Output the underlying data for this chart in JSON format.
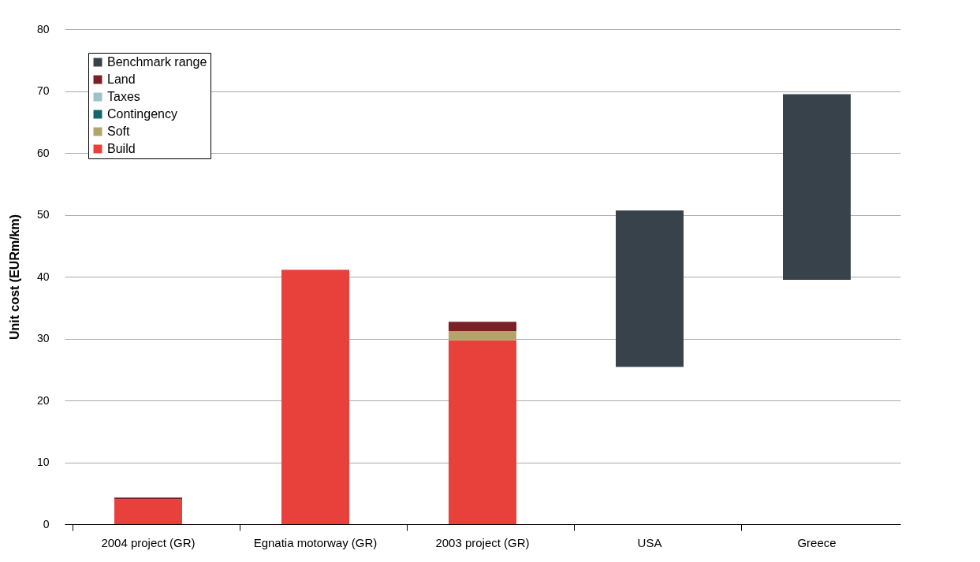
{
  "chart_data": {
    "type": "bar",
    "stacked": true,
    "ylabel": "Unit cost (EURm/km)",
    "categories": [
      "2004 project (GR)",
      "Egnatia motorway (GR)",
      "2003 project (GR)",
      "USA",
      "Greece"
    ],
    "series": [
      {
        "name": "Build",
        "color": "#e8403a",
        "values": [
          4.0,
          41.1,
          29.7,
          null,
          null
        ]
      },
      {
        "name": "Soft",
        "color": "#b2a56c",
        "values": [
          null,
          null,
          1.5,
          null,
          null
        ]
      },
      {
        "name": "Contingency",
        "color": "#17646e",
        "values": [
          null,
          null,
          null,
          null,
          null
        ]
      },
      {
        "name": "Taxes",
        "color": "#9cc3c6",
        "values": [
          null,
          null,
          null,
          null,
          null
        ]
      },
      {
        "name": "Land",
        "color": "#7a2026",
        "values": [
          0.3,
          null,
          1.5,
          null,
          null
        ]
      },
      {
        "name": "Benchmark range",
        "color": "#37424b",
        "values": [
          null,
          null,
          null,
          25.3,
          30.0
        ],
        "base": [
          null,
          null,
          null,
          25.4,
          39.5
        ]
      }
    ],
    "ylim": [
      0,
      80
    ],
    "yticks": [
      0,
      10,
      20,
      30,
      40,
      50,
      60,
      70,
      80
    ],
    "grid": "y",
    "legend": "top left"
  }
}
